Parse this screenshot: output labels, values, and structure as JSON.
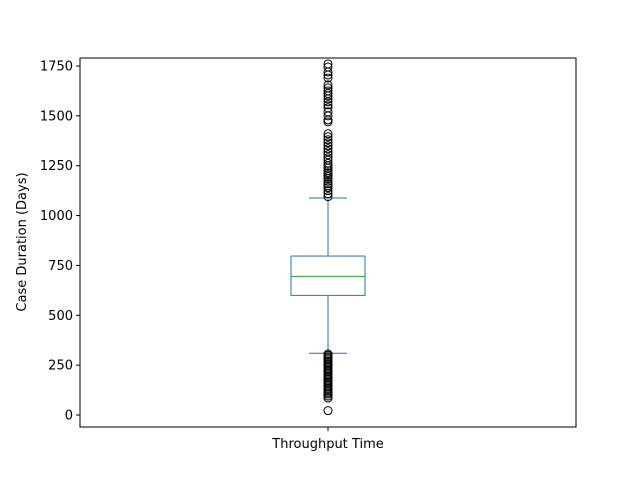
{
  "chart_data": {
    "type": "box",
    "title": "",
    "xlabel": "",
    "ylabel": "Case Duration (Days)",
    "categories": [
      "Throughput Time"
    ],
    "ylim": [
      -60,
      1790
    ],
    "yticks": [
      0,
      250,
      500,
      750,
      1000,
      1250,
      1500,
      1750
    ],
    "grid": false,
    "legend": "none",
    "box": {
      "whisker_low": 310,
      "q1": 600,
      "median": 695,
      "q3": 797,
      "whisker_high": 1088
    },
    "outliers_low": [
      22,
      85,
      95,
      105,
      112,
      120,
      128,
      135,
      142,
      150,
      158,
      165,
      172,
      180,
      188,
      195,
      202,
      210,
      218,
      225,
      232,
      240,
      248,
      255,
      262,
      270,
      278,
      285,
      292,
      300,
      306
    ],
    "outliers_high": [
      1095,
      1110,
      1125,
      1140,
      1150,
      1160,
      1172,
      1185,
      1195,
      1205,
      1215,
      1225,
      1238,
      1250,
      1262,
      1278,
      1290,
      1305,
      1320,
      1335,
      1350,
      1365,
      1380,
      1395,
      1410,
      1470,
      1480,
      1500,
      1520,
      1540,
      1555,
      1570,
      1585,
      1600,
      1612,
      1625,
      1640,
      1655,
      1690,
      1705,
      1720,
      1745,
      1760
    ],
    "colors": {
      "box": "#1f77b4",
      "median": "#2ca02c",
      "outlier": "#000000"
    }
  }
}
